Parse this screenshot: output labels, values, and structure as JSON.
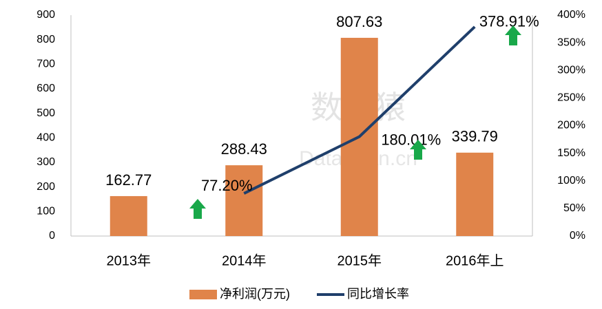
{
  "chart_data": {
    "type": "combo",
    "watermark": [
      "数据猿",
      "DataYuan.cn"
    ],
    "categories": [
      "2013年",
      "2014年",
      "2015年",
      "2016年上"
    ],
    "series": [
      {
        "name": "净利润(万元)",
        "type": "bar",
        "color": "#e0844a",
        "values": [
          162.77,
          288.43,
          807.63,
          339.79
        ]
      },
      {
        "name": "同比增长率",
        "type": "line",
        "axis": "y2",
        "color": "#1f3f6b",
        "values": [
          null,
          77.2,
          180.01,
          378.91
        ],
        "value_labels": [
          null,
          "77.20%",
          "180.01%",
          "378.91%"
        ]
      }
    ],
    "ylim": [
      0,
      900
    ],
    "yticks": [
      0,
      100,
      200,
      300,
      400,
      500,
      600,
      700,
      800,
      900
    ],
    "y2lim": [
      0,
      400
    ],
    "y2ticks": [
      {
        "value": 0,
        "label": "0%"
      },
      {
        "value": 50,
        "label": "50%"
      },
      {
        "value": 100,
        "label": "100%"
      },
      {
        "value": 150,
        "label": "150%"
      },
      {
        "value": 200,
        "label": "200%"
      },
      {
        "value": 250,
        "label": "250%"
      },
      {
        "value": 300,
        "label": "300%"
      },
      {
        "value": 350,
        "label": "350%"
      },
      {
        "value": 400,
        "label": "400%"
      }
    ],
    "legend": "bottom"
  }
}
